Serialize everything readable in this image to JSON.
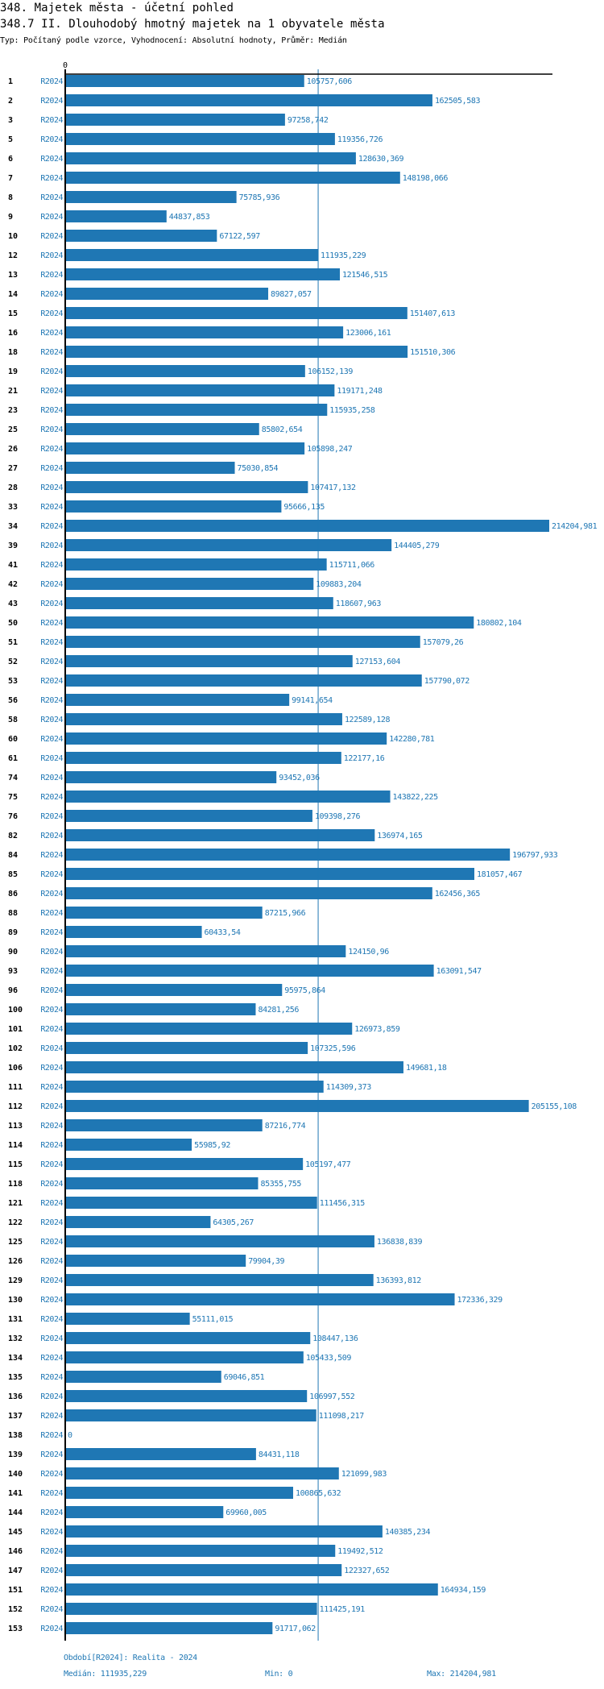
{
  "header": {
    "title": "348. Majetek města - účetní pohled",
    "subtitle_indicator": "348.7 II. Dlouhodobý hmotný majetek na 1 obyvatele města",
    "description": "Typ: Počítaný podle vzorce, Vyhodnocení: Absolutní hodnoty, Průměr: Medián"
  },
  "colors": {
    "bar": "#1f77b4",
    "median_line": "#1f77b4",
    "axis": "#000000",
    "label": "#1f77b4"
  },
  "chart_data": {
    "type": "bar",
    "orientation": "horizontal",
    "title": "348.7 II. Dlouhodobý hmotný majetek na 1 obyvatele města",
    "xlabel": "",
    "ylabel": "",
    "x_tick_labels": [
      "0"
    ],
    "xlim": [
      0,
      214204.981
    ],
    "grid": false,
    "legend": "none",
    "period_label": "R2024",
    "reference_line": {
      "name": "Medián",
      "value": 111935.229
    },
    "categories": [
      "1",
      "2",
      "3",
      "5",
      "6",
      "7",
      "8",
      "9",
      "10",
      "12",
      "13",
      "14",
      "15",
      "16",
      "18",
      "19",
      "21",
      "23",
      "25",
      "26",
      "27",
      "28",
      "33",
      "34",
      "39",
      "41",
      "42",
      "43",
      "50",
      "51",
      "52",
      "53",
      "56",
      "58",
      "60",
      "61",
      "74",
      "75",
      "76",
      "82",
      "84",
      "85",
      "86",
      "88",
      "89",
      "90",
      "93",
      "96",
      "100",
      "101",
      "102",
      "106",
      "111",
      "112",
      "113",
      "114",
      "115",
      "118",
      "121",
      "122",
      "125",
      "126",
      "129",
      "130",
      "131",
      "132",
      "134",
      "135",
      "136",
      "137",
      "138",
      "139",
      "140",
      "141",
      "144",
      "145",
      "146",
      "147",
      "151",
      "152",
      "153"
    ],
    "values": [
      105757.606,
      162505.583,
      97258.742,
      119356.726,
      128630.369,
      148198.066,
      75785.936,
      44837.853,
      67122.597,
      111935.229,
      121546.515,
      89827.057,
      151407.613,
      123006.161,
      151510.306,
      106152.139,
      119171.248,
      115935.258,
      85802.654,
      105898.247,
      75030.854,
      107417.132,
      95666.135,
      214204.981,
      144405.279,
      115711.066,
      109883.204,
      118607.963,
      180802.104,
      157079.26,
      127153.604,
      157790.072,
      99141.654,
      122589.128,
      142280.781,
      122177.16,
      93452.036,
      143822.225,
      109398.276,
      136974.165,
      196797.933,
      181057.467,
      162456.365,
      87215.966,
      60433.54,
      124150.96,
      163091.547,
      95975.864,
      84281.256,
      126973.859,
      107325.596,
      149681.18,
      114309.373,
      205155.108,
      87216.774,
      55985.92,
      105197.477,
      85355.755,
      111456.315,
      64305.267,
      136838.839,
      79904.39,
      136393.812,
      172336.329,
      55111.015,
      108447.136,
      105433.509,
      69046.851,
      106997.552,
      111098.217,
      0,
      84431.118,
      121099.983,
      100865.632,
      69960.005,
      140385.234,
      119492.512,
      122327.652,
      164934.159,
      111425.191,
      91717.062
    ],
    "value_labels": [
      "105757,606",
      "162505,583",
      "97258,742",
      "119356,726",
      "128630,369",
      "148198,066",
      "75785,936",
      "44837,853",
      "67122,597",
      "111935,229",
      "121546,515",
      "89827,057",
      "151407,613",
      "123006,161",
      "151510,306",
      "106152,139",
      "119171,248",
      "115935,258",
      "85802,654",
      "105898,247",
      "75030,854",
      "107417,132",
      "95666,135",
      "214204,981",
      "144405,279",
      "115711,066",
      "109883,204",
      "118607,963",
      "180802,104",
      "157079,26",
      "127153,604",
      "157790,072",
      "99141,654",
      "122589,128",
      "142280,781",
      "122177,16",
      "93452,036",
      "143822,225",
      "109398,276",
      "136974,165",
      "196797,933",
      "181057,467",
      "162456,365",
      "87215,966",
      "60433,54",
      "124150,96",
      "163091,547",
      "95975,864",
      "84281,256",
      "126973,859",
      "107325,596",
      "149681,18",
      "114309,373",
      "205155,108",
      "87216,774",
      "55985,92",
      "105197,477",
      "85355,755",
      "111456,315",
      "64305,267",
      "136838,839",
      "79904,39",
      "136393,812",
      "172336,329",
      "55111,015",
      "108447,136",
      "105433,509",
      "69046,851",
      "106997,552",
      "111098,217",
      "0",
      "84431,118",
      "121099,983",
      "100865,632",
      "69960,005",
      "140385,234",
      "119492,512",
      "122327,652",
      "164934,159",
      "111425,191",
      "91717,062"
    ]
  },
  "footer": {
    "period": "Období[R2024]: Realita - 2024",
    "median": "Medián: 111935,229",
    "min": "Min: 0",
    "max": "Max: 214204,981"
  }
}
